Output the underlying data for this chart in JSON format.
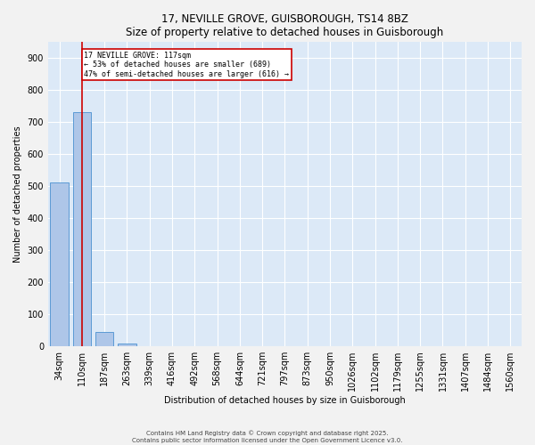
{
  "title": "17, NEVILLE GROVE, GUISBOROUGH, TS14 8BZ",
  "subtitle": "Size of property relative to detached houses in Guisborough",
  "xlabel": "Distribution of detached houses by size in Guisborough",
  "ylabel": "Number of detached properties",
  "bins": [
    "34sqm",
    "110sqm",
    "187sqm",
    "263sqm",
    "339sqm",
    "416sqm",
    "492sqm",
    "568sqm",
    "644sqm",
    "721sqm",
    "797sqm",
    "873sqm",
    "950sqm",
    "1026sqm",
    "1102sqm",
    "1179sqm",
    "1255sqm",
    "1331sqm",
    "1407sqm",
    "1484sqm",
    "1560sqm"
  ],
  "values": [
    510,
    730,
    45,
    8,
    0,
    0,
    0,
    0,
    0,
    0,
    0,
    0,
    0,
    0,
    0,
    0,
    0,
    0,
    0,
    0,
    0
  ],
  "bar_color": "#aec6e8",
  "bar_edge_color": "#5b9bd5",
  "plot_bg_color": "#dce9f7",
  "fig_bg_color": "#f2f2f2",
  "grid_color": "#ffffff",
  "annotation_line1": "17 NEVILLE GROVE: 117sqm",
  "annotation_line2": "← 53% of detached houses are smaller (689)",
  "annotation_line3": "47% of semi-detached houses are larger (616) →",
  "red_line_color": "#cc0000",
  "ylim": [
    0,
    950
  ],
  "yticks": [
    0,
    100,
    200,
    300,
    400,
    500,
    600,
    700,
    800,
    900
  ],
  "footer_line1": "Contains HM Land Registry data © Crown copyright and database right 2025.",
  "footer_line2": "Contains public sector information licensed under the Open Government Licence v3.0."
}
